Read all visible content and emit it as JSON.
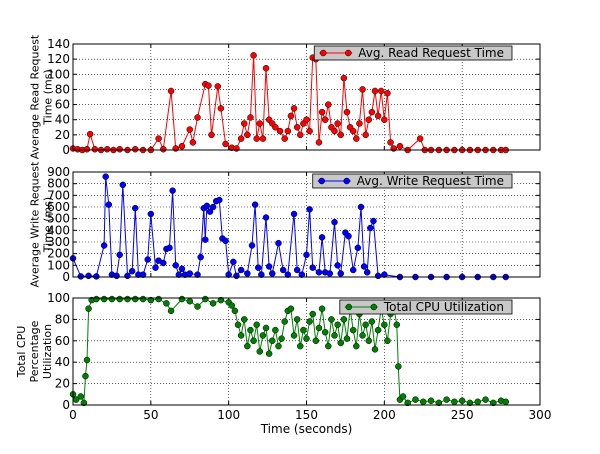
{
  "chart_data": [
    {
      "type": "line",
      "ylabel": [
        "Average Read Request",
        "Time (ms)"
      ],
      "x": [
        0,
        3,
        6,
        9,
        11,
        14,
        18,
        22,
        26,
        30,
        35,
        40,
        45,
        50,
        55,
        58,
        63,
        66,
        70,
        75,
        77,
        80,
        85,
        87,
        89,
        93,
        95,
        98,
        102,
        105,
        108,
        110,
        112,
        114,
        116,
        118,
        120,
        122,
        124,
        126,
        128,
        130,
        133,
        136,
        138,
        140,
        142,
        144,
        146,
        148,
        150,
        152,
        154,
        156,
        158,
        160,
        162,
        164,
        166,
        168,
        170,
        172,
        174,
        176,
        178,
        180,
        182,
        184,
        186,
        188,
        190,
        192,
        194,
        196,
        198,
        200,
        202,
        204,
        206,
        210,
        215,
        223,
        226,
        230,
        235,
        240,
        245,
        250,
        255,
        260,
        265,
        270,
        275,
        278
      ],
      "series": [
        {
          "name": "Avg. Read Request Time",
          "color": "#ff0000",
          "values": [
            2,
            1,
            0,
            1,
            21,
            1,
            0,
            1,
            0,
            1,
            0,
            1,
            0,
            0,
            15,
            1,
            78,
            2,
            5,
            27,
            10,
            43,
            87,
            85,
            20,
            84,
            55,
            8,
            3,
            2,
            15,
            35,
            20,
            43,
            125,
            15,
            35,
            15,
            108,
            40,
            35,
            30,
            25,
            15,
            25,
            45,
            55,
            30,
            20,
            35,
            40,
            25,
            122,
            120,
            10,
            50,
            40,
            60,
            30,
            25,
            35,
            20,
            95,
            50,
            30,
            25,
            15,
            35,
            80,
            20,
            40,
            50,
            78,
            45,
            78,
            40,
            75,
            10,
            2,
            5,
            0,
            15,
            0,
            0,
            0,
            0,
            0,
            0,
            0,
            0,
            0,
            0,
            0,
            0
          ]
        }
      ],
      "xlim": [
        0,
        300
      ],
      "xticks": [
        0,
        50,
        100,
        150,
        200,
        250,
        300
      ],
      "ylim": [
        0,
        140
      ],
      "yticks": [
        0,
        20,
        40,
        60,
        80,
        100,
        120,
        140
      ],
      "grid": true,
      "legend": "upper right"
    },
    {
      "type": "line",
      "ylabel": [
        "Average Write Request",
        "Time (ms)"
      ],
      "x": [
        0,
        5,
        10,
        15,
        20,
        21,
        23,
        25,
        28,
        30,
        32,
        35,
        38,
        40,
        42,
        45,
        48,
        50,
        53,
        55,
        58,
        60,
        62,
        64,
        66,
        68,
        70,
        72,
        75,
        80,
        82,
        84,
        85,
        86,
        88,
        90,
        92,
        94,
        96,
        98,
        100,
        103,
        105,
        108,
        112,
        115,
        117,
        119,
        121,
        124,
        126,
        128,
        132,
        135,
        138,
        142,
        144,
        147,
        150,
        152,
        154,
        158,
        160,
        162,
        165,
        168,
        170,
        172,
        175,
        177,
        180,
        183,
        185,
        187,
        189,
        191,
        193,
        196,
        200,
        210,
        220,
        230,
        240,
        250,
        260,
        270,
        278
      ],
      "series": [
        {
          "name": "Avg. Write Request Time",
          "color": "#0000ff",
          "values": [
            160,
            5,
            10,
            5,
            270,
            860,
            620,
            20,
            10,
            190,
            790,
            10,
            50,
            590,
            20,
            20,
            150,
            540,
            80,
            140,
            120,
            240,
            250,
            740,
            100,
            20,
            70,
            20,
            30,
            20,
            170,
            590,
            320,
            610,
            560,
            600,
            650,
            660,
            330,
            310,
            20,
            130,
            10,
            60,
            30,
            270,
            620,
            80,
            20,
            510,
            90,
            30,
            290,
            60,
            20,
            540,
            60,
            20,
            190,
            580,
            80,
            40,
            340,
            40,
            30,
            470,
            100,
            30,
            380,
            350,
            60,
            250,
            600,
            90,
            40,
            420,
            480,
            10,
            20,
            0,
            0,
            0,
            0,
            0,
            0,
            0,
            0
          ]
        }
      ],
      "xlim": [
        0,
        300
      ],
      "xticks": [
        0,
        50,
        100,
        150,
        200,
        250,
        300
      ],
      "ylim": [
        0,
        900
      ],
      "yticks": [
        0,
        100,
        200,
        300,
        400,
        500,
        600,
        700,
        800,
        900
      ],
      "grid": true,
      "legend": "upper right"
    },
    {
      "type": "line",
      "ylabel": [
        "Total CPU",
        "Percentage",
        "Utilization"
      ],
      "xlabel": "Time (seconds)",
      "x": [
        0,
        2,
        5,
        7,
        8,
        9,
        10,
        12,
        15,
        20,
        25,
        30,
        35,
        40,
        45,
        50,
        55,
        60,
        63,
        70,
        75,
        80,
        85,
        90,
        95,
        100,
        102,
        104,
        106,
        108,
        110,
        112,
        114,
        116,
        118,
        120,
        122,
        124,
        126,
        128,
        130,
        132,
        134,
        136,
        138,
        140,
        142,
        144,
        146,
        148,
        150,
        152,
        154,
        156,
        158,
        160,
        162,
        164,
        166,
        168,
        170,
        172,
        174,
        176,
        178,
        180,
        182,
        184,
        186,
        188,
        190,
        192,
        194,
        196,
        198,
        200,
        202,
        204,
        206,
        208,
        209,
        210,
        212,
        215,
        220,
        225,
        230,
        235,
        240,
        245,
        250,
        255,
        260,
        265,
        270,
        275,
        278
      ],
      "series": [
        {
          "name": "Total CPU Utilization",
          "color": "#008000",
          "values": [
            10,
            5,
            8,
            2,
            27,
            42,
            90,
            98,
            99,
            99,
            99,
            99,
            99,
            99,
            99,
            98,
            99,
            95,
            88,
            99,
            97,
            92,
            99,
            95,
            98,
            96,
            93,
            88,
            75,
            65,
            80,
            55,
            70,
            60,
            75,
            50,
            65,
            72,
            48,
            60,
            70,
            55,
            62,
            78,
            88,
            90,
            65,
            80,
            55,
            70,
            62,
            78,
            85,
            60,
            72,
            90,
            68,
            55,
            80,
            65,
            75,
            58,
            80,
            62,
            90,
            70,
            55,
            85,
            65,
            75,
            60,
            78,
            52,
            70,
            90,
            75,
            60,
            85,
            92,
            75,
            36,
            5,
            8,
            2,
            5,
            3,
            4,
            2,
            5,
            3,
            4,
            2,
            3,
            5,
            2,
            4,
            3
          ]
        }
      ],
      "xlim": [
        0,
        300
      ],
      "xticks": [
        0,
        50,
        100,
        150,
        200,
        250,
        300
      ],
      "ylim": [
        0,
        100
      ],
      "yticks": [
        0,
        20,
        40,
        60,
        80,
        100
      ],
      "grid": true,
      "legend": "upper right"
    }
  ]
}
